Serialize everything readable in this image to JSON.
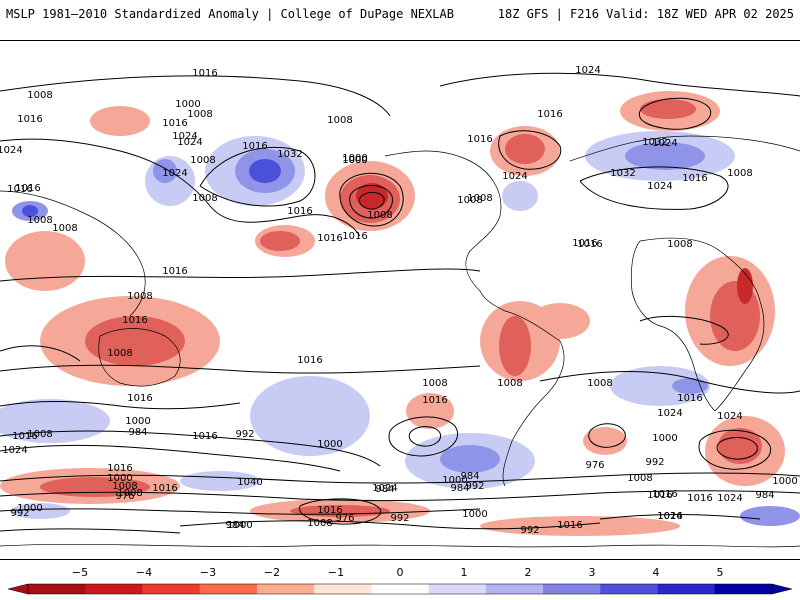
{
  "header": {
    "title_left": "MSLP 1981–2010 Standardized Anomaly | College of DuPage NEXLAB",
    "title_right": "18Z GFS | F216 Valid: 18Z WED APR 02 2025"
  },
  "map": {
    "isobar_labels": [
      "1016",
      "1024",
      "1008",
      "1000",
      "1016",
      "1008",
      "1016",
      "1024",
      "1008",
      "1016",
      "1000",
      "1016",
      "1008",
      "1024",
      "1016",
      "1032",
      "1024",
      "1016",
      "1008",
      "1024",
      "1016",
      "1008",
      "1024",
      "1000",
      "1016",
      "1016",
      "1008",
      "1000",
      "1008",
      "1032",
      "1024",
      "1032",
      "1024",
      "1016",
      "1016",
      "1008",
      "1016",
      "1008",
      "1016",
      "1008",
      "1008",
      "1008",
      "1016",
      "1016",
      "1008",
      "1016",
      "1016",
      "1016",
      "1000",
      "984",
      "1008",
      "1016",
      "992",
      "1024",
      "1000",
      "1008",
      "1016",
      "1008",
      "1024",
      "1008",
      "1000",
      "992",
      "1000",
      "976",
      "984",
      "1016",
      "1000",
      "1008",
      "976",
      "1016",
      "1040",
      "984",
      "1000",
      "992",
      "984",
      "1008",
      "1000",
      "1016",
      "1024",
      "992",
      "1000",
      "976",
      "992",
      "1016",
      "1008",
      "992",
      "984",
      "1024",
      "1016",
      "1008",
      "1000",
      "984",
      "1016",
      "1024",
      "1016",
      "1016",
      "1024",
      "1016",
      "1024"
    ],
    "colors": {
      "neg_strong": "#c8282a",
      "neg_mid": "#e0605a",
      "neg_weak": "#f5a898",
      "pos_weak": "#c8ccf4",
      "pos_mid": "#8f94e8",
      "pos_strong": "#4a50d8",
      "isobar": "#000000",
      "coast": "#000000"
    }
  },
  "colorbar": {
    "labels": [
      "−5",
      "−4",
      "−3",
      "−2",
      "−1",
      "0",
      "1",
      "2",
      "3",
      "4",
      "5"
    ],
    "colors": [
      "#a50f15",
      "#cb181d",
      "#ef3b2c",
      "#fb6a4a",
      "#fcae91",
      "#fee5d9",
      "#ffffff",
      "#dadaf8",
      "#b4b4f0",
      "#8282e6",
      "#5050dc",
      "#2828c8",
      "#0000a0"
    ]
  }
}
